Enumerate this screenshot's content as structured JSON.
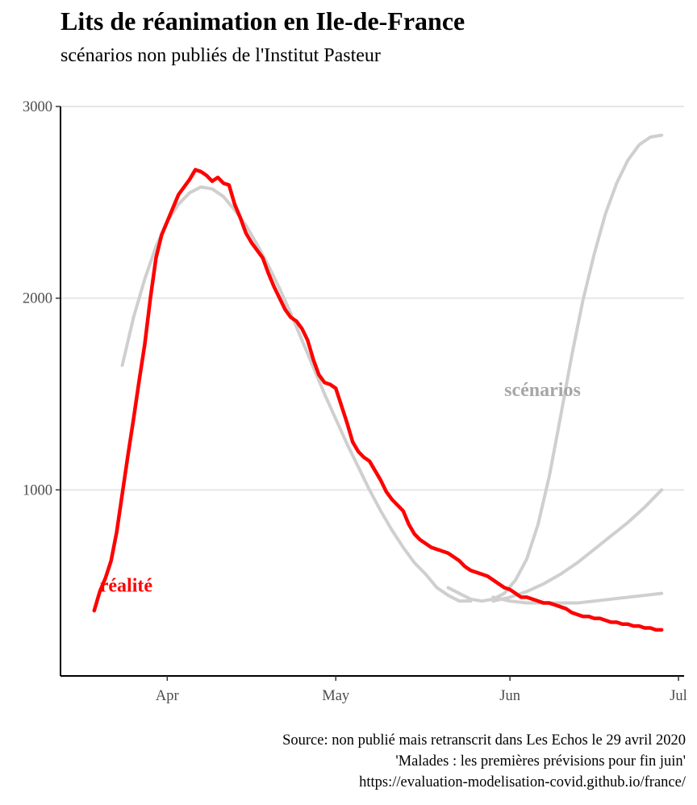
{
  "title": "Lits de réanimation en Ile-de-France",
  "subtitle": "scénarios non publiés de l'Institut Pasteur",
  "caption": [
    "Source: non publié mais retranscrit dans Les Echos le 29 avril 2020",
    "'Malades : les premières prévisions pour fin juin'",
    "https://evaluation-modelisation-covid.github.io/france/"
  ],
  "colors": {
    "realite": "#ff0000",
    "scenarios": "#cfcfcf",
    "scenario_label": "#a6a6a6",
    "grid": "#e6e6e6",
    "axis": "#000000"
  },
  "chart_data": {
    "type": "line",
    "title": "Lits de réanimation en Ile-de-France",
    "subtitle": "scénarios non publiés de l'Institut Pasteur",
    "xlabel": "",
    "ylabel": "",
    "xlim": [
      "2020-03-13",
      "2020-07-02"
    ],
    "ylim": [
      0,
      3000
    ],
    "y_ticks": [
      1000,
      2000,
      3000
    ],
    "x_ticks": [
      {
        "label": "Apr",
        "date": "2020-04-01"
      },
      {
        "label": "May",
        "date": "2020-05-01"
      },
      {
        "label": "Jun",
        "date": "2020-06-01"
      },
      {
        "label": "Jul",
        "date": "2020-07-01"
      }
    ],
    "grid": "horizontal major",
    "annotations": [
      {
        "text": "réalité",
        "x": "2020-03-20",
        "y": 470,
        "series": "réalité"
      },
      {
        "text": "scénarios",
        "x": "2020-05-31",
        "y": 1490,
        "series": "scénarios"
      }
    ],
    "series": [
      {
        "name": "réalité",
        "points": [
          [
            "2020-03-19",
            370
          ],
          [
            "2020-03-20",
            470
          ],
          [
            "2020-03-21",
            540
          ],
          [
            "2020-03-22",
            630
          ],
          [
            "2020-03-23",
            780
          ],
          [
            "2020-03-24",
            980
          ],
          [
            "2020-03-25",
            1180
          ],
          [
            "2020-03-26",
            1370
          ],
          [
            "2020-03-27",
            1570
          ],
          [
            "2020-03-28",
            1760
          ],
          [
            "2020-03-29",
            2000
          ],
          [
            "2020-03-30",
            2210
          ],
          [
            "2020-03-31",
            2330
          ],
          [
            "2020-04-01",
            2400
          ],
          [
            "2020-04-02",
            2470
          ],
          [
            "2020-04-03",
            2540
          ],
          [
            "2020-04-04",
            2580
          ],
          [
            "2020-04-05",
            2620
          ],
          [
            "2020-04-06",
            2670
          ],
          [
            "2020-04-07",
            2660
          ],
          [
            "2020-04-08",
            2640
          ],
          [
            "2020-04-09",
            2610
          ],
          [
            "2020-04-10",
            2630
          ],
          [
            "2020-04-11",
            2600
          ],
          [
            "2020-04-12",
            2590
          ],
          [
            "2020-04-13",
            2490
          ],
          [
            "2020-04-14",
            2420
          ],
          [
            "2020-04-15",
            2340
          ],
          [
            "2020-04-16",
            2290
          ],
          [
            "2020-04-17",
            2250
          ],
          [
            "2020-04-18",
            2210
          ],
          [
            "2020-04-19",
            2130
          ],
          [
            "2020-04-20",
            2060
          ],
          [
            "2020-04-21",
            2000
          ],
          [
            "2020-04-22",
            1940
          ],
          [
            "2020-04-23",
            1900
          ],
          [
            "2020-04-24",
            1880
          ],
          [
            "2020-04-25",
            1840
          ],
          [
            "2020-04-26",
            1780
          ],
          [
            "2020-04-27",
            1680
          ],
          [
            "2020-04-28",
            1600
          ],
          [
            "2020-04-29",
            1560
          ],
          [
            "2020-04-30",
            1550
          ],
          [
            "2020-05-01",
            1530
          ],
          [
            "2020-05-02",
            1440
          ],
          [
            "2020-05-03",
            1350
          ],
          [
            "2020-05-04",
            1250
          ],
          [
            "2020-05-05",
            1200
          ],
          [
            "2020-05-06",
            1170
          ],
          [
            "2020-05-07",
            1150
          ],
          [
            "2020-05-08",
            1100
          ],
          [
            "2020-05-09",
            1050
          ],
          [
            "2020-05-10",
            990
          ],
          [
            "2020-05-11",
            950
          ],
          [
            "2020-05-12",
            920
          ],
          [
            "2020-05-13",
            890
          ],
          [
            "2020-05-14",
            820
          ],
          [
            "2020-05-15",
            770
          ],
          [
            "2020-05-16",
            740
          ],
          [
            "2020-05-17",
            720
          ],
          [
            "2020-05-18",
            700
          ],
          [
            "2020-05-19",
            690
          ],
          [
            "2020-05-20",
            680
          ],
          [
            "2020-05-21",
            670
          ],
          [
            "2020-05-22",
            650
          ],
          [
            "2020-05-23",
            630
          ],
          [
            "2020-05-24",
            600
          ],
          [
            "2020-05-25",
            580
          ],
          [
            "2020-05-26",
            570
          ],
          [
            "2020-05-27",
            560
          ],
          [
            "2020-05-28",
            550
          ],
          [
            "2020-05-29",
            530
          ],
          [
            "2020-05-30",
            510
          ],
          [
            "2020-05-31",
            490
          ],
          [
            "2020-06-01",
            480
          ],
          [
            "2020-06-02",
            460
          ],
          [
            "2020-06-03",
            440
          ],
          [
            "2020-06-04",
            440
          ],
          [
            "2020-06-05",
            430
          ],
          [
            "2020-06-06",
            420
          ],
          [
            "2020-06-07",
            410
          ],
          [
            "2020-06-08",
            410
          ],
          [
            "2020-06-09",
            400
          ],
          [
            "2020-06-10",
            390
          ],
          [
            "2020-06-11",
            380
          ],
          [
            "2020-06-12",
            360
          ],
          [
            "2020-06-13",
            350
          ],
          [
            "2020-06-14",
            340
          ],
          [
            "2020-06-15",
            340
          ],
          [
            "2020-06-16",
            330
          ],
          [
            "2020-06-17",
            330
          ],
          [
            "2020-06-18",
            320
          ],
          [
            "2020-06-19",
            310
          ],
          [
            "2020-06-20",
            310
          ],
          [
            "2020-06-21",
            300
          ],
          [
            "2020-06-22",
            300
          ],
          [
            "2020-06-23",
            290
          ],
          [
            "2020-06-24",
            290
          ],
          [
            "2020-06-25",
            280
          ],
          [
            "2020-06-26",
            280
          ],
          [
            "2020-06-27",
            270
          ],
          [
            "2020-06-28",
            270
          ]
        ]
      },
      {
        "name": "scénarios",
        "points": [
          [
            "2020-03-24",
            1650
          ],
          [
            "2020-03-26",
            1900
          ],
          [
            "2020-03-28",
            2100
          ],
          [
            "2020-03-30",
            2270
          ],
          [
            "2020-04-01",
            2400
          ],
          [
            "2020-04-03",
            2490
          ],
          [
            "2020-04-05",
            2550
          ],
          [
            "2020-04-07",
            2580
          ],
          [
            "2020-04-09",
            2570
          ],
          [
            "2020-04-11",
            2530
          ],
          [
            "2020-04-13",
            2460
          ],
          [
            "2020-04-15",
            2380
          ],
          [
            "2020-04-17",
            2280
          ],
          [
            "2020-04-19",
            2170
          ],
          [
            "2020-04-21",
            2050
          ],
          [
            "2020-04-23",
            1920
          ],
          [
            "2020-04-25",
            1780
          ],
          [
            "2020-04-27",
            1640
          ],
          [
            "2020-04-29",
            1500
          ],
          [
            "2020-05-01",
            1370
          ],
          [
            "2020-05-03",
            1240
          ],
          [
            "2020-05-05",
            1120
          ],
          [
            "2020-05-07",
            1000
          ],
          [
            "2020-05-09",
            890
          ],
          [
            "2020-05-11",
            790
          ],
          [
            "2020-05-13",
            700
          ],
          [
            "2020-05-15",
            620
          ],
          [
            "2020-05-17",
            560
          ],
          [
            "2020-05-19",
            490
          ],
          [
            "2020-05-21",
            450
          ],
          [
            "2020-05-23",
            420
          ],
          [
            "2020-05-25",
            420
          ]
        ]
      },
      {
        "name": "",
        "points": [
          [
            "2020-05-21",
            490
          ],
          [
            "2020-05-23",
            460
          ],
          [
            "2020-05-25",
            430
          ],
          [
            "2020-05-27",
            420
          ],
          [
            "2020-05-29",
            430
          ],
          [
            "2020-05-31",
            460
          ],
          [
            "2020-06-02",
            530
          ],
          [
            "2020-06-04",
            640
          ],
          [
            "2020-06-06",
            820
          ],
          [
            "2020-06-08",
            1070
          ],
          [
            "2020-06-10",
            1380
          ],
          [
            "2020-06-12",
            1700
          ],
          [
            "2020-06-14",
            1990
          ],
          [
            "2020-06-16",
            2230
          ],
          [
            "2020-06-18",
            2440
          ],
          [
            "2020-06-20",
            2600
          ],
          [
            "2020-06-22",
            2720
          ],
          [
            "2020-06-24",
            2800
          ],
          [
            "2020-06-26",
            2840
          ],
          [
            "2020-06-28",
            2850
          ]
        ]
      },
      {
        "name": "",
        "points": [
          [
            "2020-05-29",
            420
          ],
          [
            "2020-06-01",
            440
          ],
          [
            "2020-06-04",
            470
          ],
          [
            "2020-06-07",
            510
          ],
          [
            "2020-06-10",
            560
          ],
          [
            "2020-06-13",
            620
          ],
          [
            "2020-06-16",
            690
          ],
          [
            "2020-06-19",
            760
          ],
          [
            "2020-06-22",
            830
          ],
          [
            "2020-06-25",
            910
          ],
          [
            "2020-06-28",
            1000
          ]
        ]
      },
      {
        "name": "",
        "points": [
          [
            "2020-05-29",
            440
          ],
          [
            "2020-06-01",
            420
          ],
          [
            "2020-06-04",
            410
          ],
          [
            "2020-06-07",
            410
          ],
          [
            "2020-06-10",
            410
          ],
          [
            "2020-06-13",
            410
          ],
          [
            "2020-06-16",
            420
          ],
          [
            "2020-06-19",
            430
          ],
          [
            "2020-06-22",
            440
          ],
          [
            "2020-06-25",
            450
          ],
          [
            "2020-06-28",
            460
          ]
        ]
      }
    ]
  }
}
